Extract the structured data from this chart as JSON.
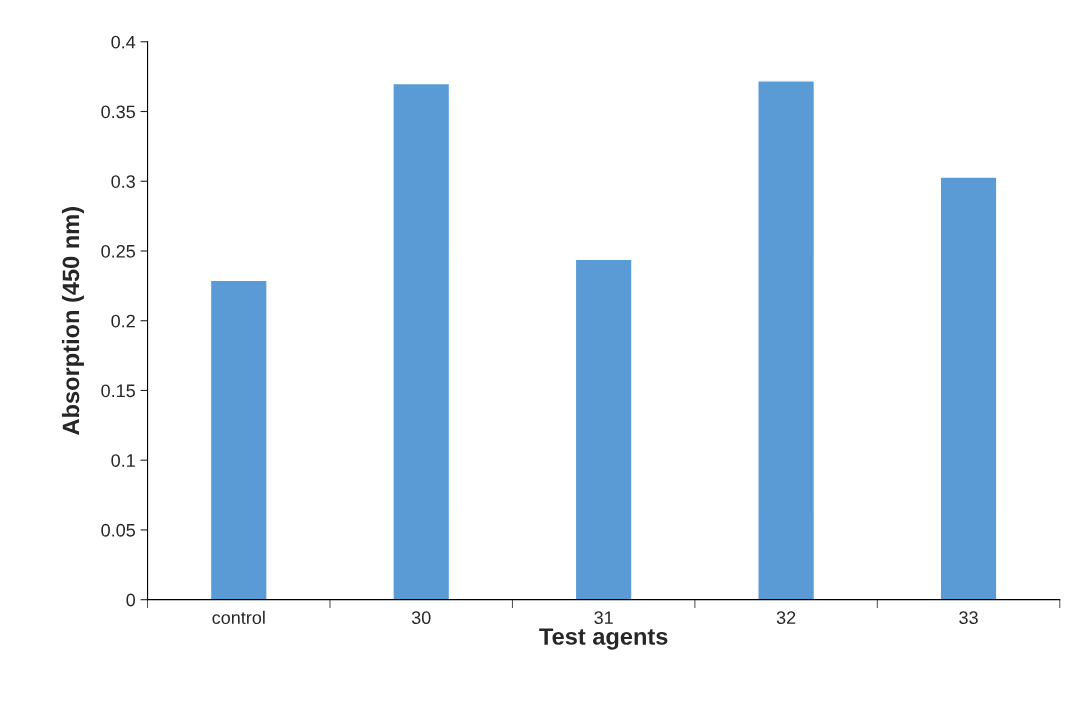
{
  "chart_data": {
    "type": "bar",
    "xlabel": "Test agents",
    "ylabel": "Absorption (450 nm)",
    "categories": [
      "control",
      "30",
      "31",
      "32",
      "33"
    ],
    "values": [
      0.229,
      0.37,
      0.244,
      0.372,
      0.303
    ],
    "color": "#5b9bd5",
    "ylim": [
      0,
      0.4
    ],
    "yticks": [
      0,
      0.05,
      0.1,
      0.15,
      0.2,
      0.25,
      0.3,
      0.35,
      0.4
    ],
    "grid": false,
    "legend": false
  }
}
